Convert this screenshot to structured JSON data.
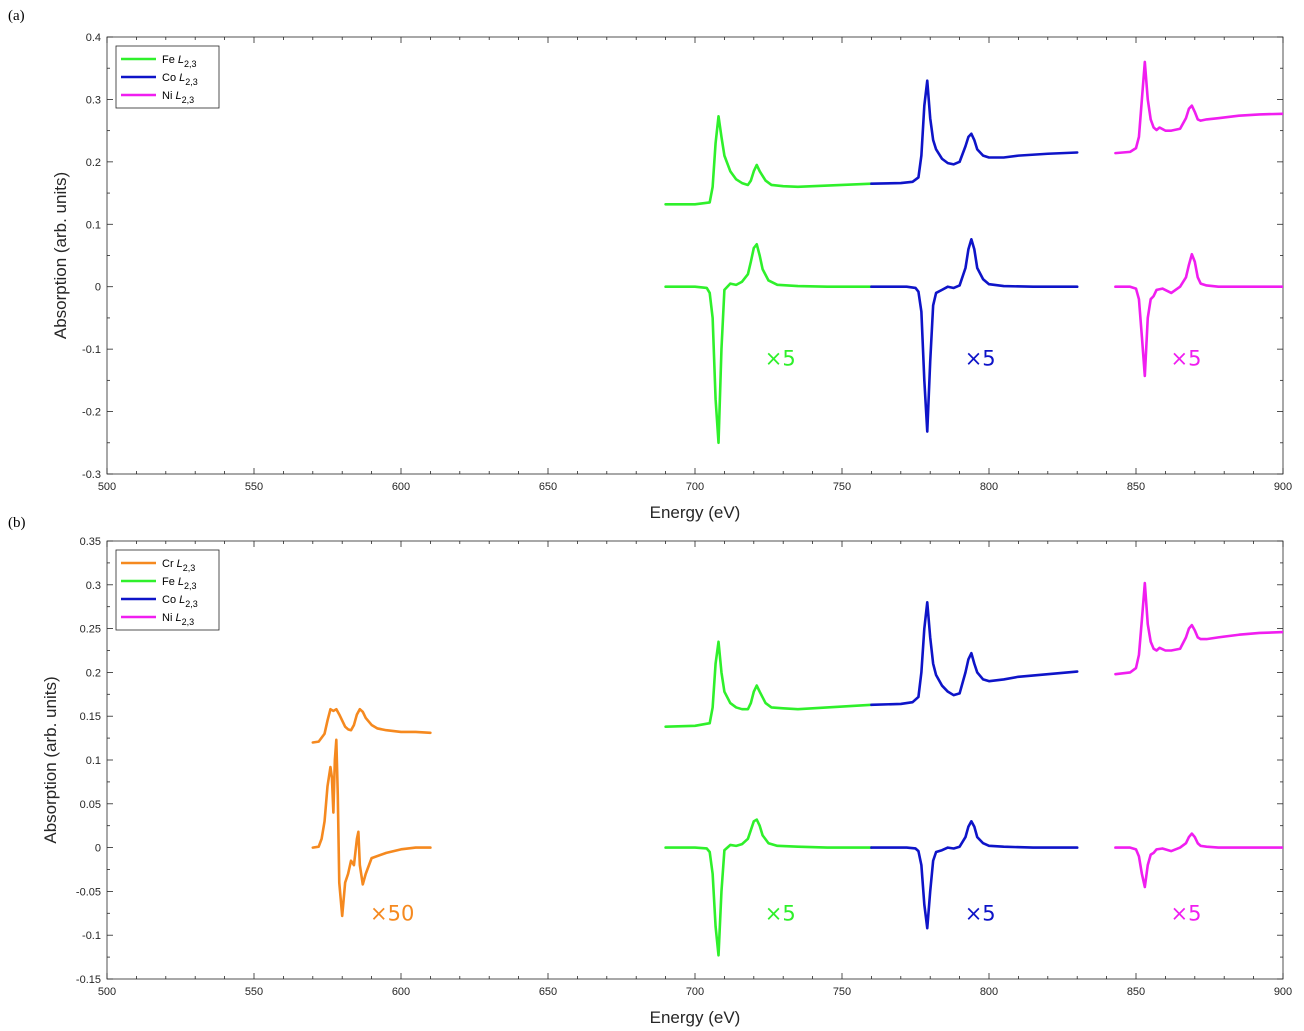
{
  "colors": {
    "Cr": "#f5891f",
    "Fe": "#2ff02b",
    "Co": "#0e14c8",
    "Ni": "#f01ef0",
    "axis": "#262626"
  },
  "chart_data": [
    {
      "type": "line",
      "panel_label": "(a)",
      "xlabel": "Energy (eV)",
      "ylabel": "Absorption (arb. units)",
      "xlim": [
        500,
        900
      ],
      "ylim": [
        -0.3,
        0.4
      ],
      "xticks": [
        500,
        550,
        600,
        650,
        700,
        750,
        800,
        850,
        900
      ],
      "yticks": [
        -0.3,
        -0.2,
        -0.1,
        0,
        0.1,
        0.2,
        0.3,
        0.4
      ],
      "xtick_labels": [
        "500",
        "550",
        "600",
        "650",
        "700",
        "750",
        "800",
        "850",
        "900"
      ],
      "ytick_labels": [
        "-0.3",
        "-0.2",
        "-0.1",
        "0",
        "0.1",
        "0.2",
        "0.3",
        "0.4"
      ],
      "grid": false,
      "legend_position": "top-left",
      "legend": [
        {
          "element": "Fe",
          "prefix": "Fe ",
          "symbol": "L",
          "subscript": "2,3"
        },
        {
          "element": "Co",
          "prefix": "Co ",
          "symbol": "L",
          "subscript": "2,3"
        },
        {
          "element": "Ni",
          "prefix": "Ni ",
          "symbol": "L",
          "subscript": "2,3"
        }
      ],
      "annotations": [
        {
          "text": "×5",
          "element": "Fe",
          "x": 729,
          "y": -0.115
        },
        {
          "text": "×5",
          "element": "Co",
          "x": 797,
          "y": -0.115
        },
        {
          "text": "×5",
          "element": "Ni",
          "x": 867,
          "y": -0.115
        }
      ],
      "series": [
        {
          "element": "Fe",
          "kind": "xas",
          "x": [
            690,
            700,
            705,
            706,
            707,
            708,
            709,
            710,
            712,
            714,
            716,
            718,
            719,
            720,
            721,
            722,
            724,
            726,
            730,
            735,
            740,
            750,
            760
          ],
          "y": [
            0.132,
            0.132,
            0.135,
            0.16,
            0.23,
            0.273,
            0.24,
            0.21,
            0.185,
            0.172,
            0.166,
            0.163,
            0.17,
            0.185,
            0.195,
            0.185,
            0.17,
            0.163,
            0.161,
            0.16,
            0.161,
            0.163,
            0.165
          ]
        },
        {
          "element": "Co",
          "kind": "xas",
          "x": [
            760,
            770,
            774,
            776,
            777,
            778,
            779,
            780,
            781,
            782,
            784,
            786,
            788,
            790,
            792,
            793,
            794,
            795,
            796,
            798,
            800,
            805,
            810,
            820,
            830
          ],
          "y": [
            0.165,
            0.166,
            0.168,
            0.175,
            0.21,
            0.29,
            0.33,
            0.27,
            0.235,
            0.22,
            0.205,
            0.198,
            0.196,
            0.2,
            0.225,
            0.24,
            0.245,
            0.235,
            0.22,
            0.21,
            0.207,
            0.207,
            0.21,
            0.213,
            0.215
          ]
        },
        {
          "element": "Ni",
          "kind": "xas",
          "x": [
            843,
            848,
            850,
            851,
            852,
            853,
            854,
            855,
            856,
            857,
            858,
            860,
            862,
            865,
            867,
            868,
            869,
            870,
            871,
            872,
            874,
            878,
            885,
            892,
            900
          ],
          "y": [
            0.214,
            0.216,
            0.222,
            0.24,
            0.3,
            0.36,
            0.3,
            0.268,
            0.255,
            0.251,
            0.255,
            0.25,
            0.25,
            0.253,
            0.27,
            0.285,
            0.29,
            0.28,
            0.268,
            0.266,
            0.268,
            0.27,
            0.274,
            0.276,
            0.277
          ]
        },
        {
          "element": "Fe",
          "kind": "xmcd",
          "x": [
            690,
            700,
            704,
            705,
            706,
            707,
            708,
            709,
            710,
            712,
            714,
            716,
            718,
            719,
            720,
            721,
            722,
            723,
            725,
            728,
            735,
            745,
            760
          ],
          "y": [
            0,
            0,
            -0.002,
            -0.01,
            -0.05,
            -0.18,
            -0.25,
            -0.1,
            -0.005,
            0.005,
            0.003,
            0.008,
            0.02,
            0.04,
            0.062,
            0.068,
            0.05,
            0.028,
            0.01,
            0.003,
            0.001,
            0,
            0
          ]
        },
        {
          "element": "Co",
          "kind": "xmcd",
          "x": [
            760,
            772,
            775,
            776,
            777,
            778,
            779,
            780,
            781,
            782,
            784,
            786,
            788,
            790,
            792,
            793,
            794,
            795,
            796,
            798,
            800,
            805,
            815,
            830
          ],
          "y": [
            0,
            0,
            -0.002,
            -0.008,
            -0.04,
            -0.15,
            -0.232,
            -0.12,
            -0.03,
            -0.01,
            -0.005,
            0,
            -0.002,
            0.002,
            0.03,
            0.06,
            0.076,
            0.06,
            0.03,
            0.012,
            0.004,
            0.001,
            0,
            0
          ]
        },
        {
          "element": "Ni",
          "kind": "xmcd",
          "x": [
            843,
            848,
            850,
            851,
            852,
            853,
            854,
            855,
            856,
            857,
            859,
            862,
            865,
            867,
            868,
            869,
            870,
            871,
            872,
            874,
            878,
            885,
            900
          ],
          "y": [
            0,
            0,
            -0.003,
            -0.02,
            -0.08,
            -0.143,
            -0.05,
            -0.02,
            -0.015,
            -0.005,
            -0.003,
            -0.01,
            0,
            0.015,
            0.035,
            0.052,
            0.04,
            0.015,
            0.005,
            0.002,
            0,
            0,
            0
          ]
        }
      ]
    },
    {
      "type": "line",
      "panel_label": "(b)",
      "xlabel": "Energy (eV)",
      "ylabel": "Absorption (arb. units)",
      "xlim": [
        500,
        900
      ],
      "ylim": [
        -0.15,
        0.35
      ],
      "xticks": [
        500,
        550,
        600,
        650,
        700,
        750,
        800,
        850,
        900
      ],
      "yticks": [
        -0.15,
        -0.1,
        -0.05,
        0,
        0.05,
        0.1,
        0.15,
        0.2,
        0.25,
        0.3,
        0.35
      ],
      "xtick_labels": [
        "500",
        "550",
        "600",
        "650",
        "700",
        "750",
        "800",
        "850",
        "900"
      ],
      "ytick_labels": [
        "-0.15",
        "-0.1",
        "-0.05",
        "0",
        "0.05",
        "0.1",
        "0.15",
        "0.2",
        "0.25",
        "0.3",
        "0.35"
      ],
      "grid": false,
      "legend_position": "top-left",
      "legend": [
        {
          "element": "Cr",
          "prefix": "Cr ",
          "symbol": "L",
          "subscript": "2,3"
        },
        {
          "element": "Fe",
          "prefix": "Fe ",
          "symbol": "L",
          "subscript": "2,3"
        },
        {
          "element": "Co",
          "prefix": "Co ",
          "symbol": "L",
          "subscript": "2,3"
        },
        {
          "element": "Ni",
          "prefix": "Ni ",
          "symbol": "L",
          "subscript": "2,3"
        }
      ],
      "annotations": [
        {
          "text": "×50",
          "element": "Cr",
          "x": 597,
          "y": -0.075
        },
        {
          "text": "×5",
          "element": "Fe",
          "x": 729,
          "y": -0.075
        },
        {
          "text": "×5",
          "element": "Co",
          "x": 797,
          "y": -0.075
        },
        {
          "text": "×5",
          "element": "Ni",
          "x": 867,
          "y": -0.075
        }
      ],
      "series": [
        {
          "element": "Cr",
          "kind": "xas",
          "x": [
            570,
            572,
            574,
            575,
            576,
            577,
            578,
            579,
            580,
            581,
            582,
            583,
            584,
            585,
            586,
            587,
            588,
            590,
            592,
            595,
            600,
            605,
            610
          ],
          "y": [
            0.12,
            0.121,
            0.13,
            0.145,
            0.158,
            0.156,
            0.158,
            0.152,
            0.145,
            0.138,
            0.135,
            0.134,
            0.14,
            0.152,
            0.158,
            0.155,
            0.148,
            0.14,
            0.136,
            0.134,
            0.132,
            0.132,
            0.131
          ]
        },
        {
          "element": "Fe",
          "kind": "xas",
          "x": [
            690,
            700,
            705,
            706,
            707,
            708,
            709,
            710,
            712,
            714,
            716,
            718,
            719,
            720,
            721,
            722,
            724,
            726,
            730,
            735,
            740,
            750,
            760
          ],
          "y": [
            0.138,
            0.139,
            0.142,
            0.16,
            0.21,
            0.235,
            0.2,
            0.178,
            0.165,
            0.16,
            0.158,
            0.158,
            0.165,
            0.178,
            0.185,
            0.178,
            0.165,
            0.16,
            0.159,
            0.158,
            0.159,
            0.161,
            0.163
          ]
        },
        {
          "element": "Co",
          "kind": "xas",
          "x": [
            760,
            770,
            774,
            776,
            777,
            778,
            779,
            780,
            781,
            782,
            784,
            786,
            788,
            790,
            792,
            793,
            794,
            795,
            796,
            798,
            800,
            805,
            810,
            820,
            830
          ],
          "y": [
            0.163,
            0.164,
            0.166,
            0.172,
            0.2,
            0.25,
            0.28,
            0.24,
            0.21,
            0.197,
            0.185,
            0.178,
            0.174,
            0.176,
            0.2,
            0.215,
            0.222,
            0.21,
            0.2,
            0.192,
            0.19,
            0.192,
            0.195,
            0.198,
            0.201
          ]
        },
        {
          "element": "Ni",
          "kind": "xas",
          "x": [
            843,
            848,
            850,
            851,
            852,
            853,
            854,
            855,
            856,
            857,
            858,
            860,
            862,
            865,
            867,
            868,
            869,
            870,
            871,
            872,
            874,
            878,
            885,
            892,
            900
          ],
          "y": [
            0.198,
            0.2,
            0.205,
            0.22,
            0.26,
            0.302,
            0.255,
            0.235,
            0.227,
            0.225,
            0.228,
            0.225,
            0.225,
            0.227,
            0.24,
            0.25,
            0.254,
            0.248,
            0.24,
            0.238,
            0.238,
            0.24,
            0.243,
            0.245,
            0.246
          ]
        },
        {
          "element": "Cr",
          "kind": "xmcd",
          "x": [
            570,
            572,
            573,
            574,
            575,
            576,
            576.5,
            577,
            577.5,
            578,
            578.5,
            579,
            580,
            581,
            582,
            583,
            584,
            585,
            585.5,
            586,
            587,
            588,
            590,
            595,
            600,
            605,
            610
          ],
          "y": [
            0,
            0.001,
            0.01,
            0.03,
            0.07,
            0.092,
            0.08,
            0.04,
            0.1,
            0.123,
            0.06,
            -0.04,
            -0.078,
            -0.04,
            -0.03,
            -0.015,
            -0.02,
            0.01,
            0.018,
            -0.02,
            -0.042,
            -0.03,
            -0.012,
            -0.006,
            -0.002,
            0,
            0
          ]
        },
        {
          "element": "Fe",
          "kind": "xmcd",
          "x": [
            690,
            700,
            704,
            705,
            706,
            707,
            708,
            709,
            710,
            712,
            714,
            716,
            718,
            719,
            720,
            721,
            722,
            723,
            725,
            728,
            735,
            745,
            760
          ],
          "y": [
            0,
            0,
            -0.001,
            -0.005,
            -0.03,
            -0.09,
            -0.123,
            -0.05,
            -0.003,
            0.003,
            0.002,
            0.004,
            0.01,
            0.02,
            0.03,
            0.032,
            0.025,
            0.014,
            0.005,
            0.002,
            0.001,
            0,
            0
          ]
        },
        {
          "element": "Co",
          "kind": "xmcd",
          "x": [
            760,
            772,
            775,
            776,
            777,
            778,
            779,
            780,
            781,
            782,
            784,
            786,
            788,
            790,
            792,
            793,
            794,
            795,
            796,
            798,
            800,
            805,
            815,
            830
          ],
          "y": [
            0,
            0,
            -0.001,
            -0.004,
            -0.02,
            -0.065,
            -0.092,
            -0.05,
            -0.015,
            -0.005,
            -0.003,
            0,
            -0.001,
            0.001,
            0.012,
            0.024,
            0.03,
            0.024,
            0.012,
            0.005,
            0.002,
            0.001,
            0,
            0
          ]
        },
        {
          "element": "Ni",
          "kind": "xmcd",
          "x": [
            843,
            848,
            850,
            851,
            852,
            853,
            854,
            855,
            856,
            857,
            859,
            862,
            865,
            867,
            868,
            869,
            870,
            871,
            872,
            874,
            878,
            885,
            900
          ],
          "y": [
            0,
            0,
            -0.002,
            -0.01,
            -0.03,
            -0.045,
            -0.02,
            -0.008,
            -0.006,
            -0.002,
            -0.001,
            -0.004,
            0,
            0.005,
            0.012,
            0.016,
            0.012,
            0.005,
            0.002,
            0.001,
            0,
            0,
            0
          ]
        }
      ]
    }
  ]
}
